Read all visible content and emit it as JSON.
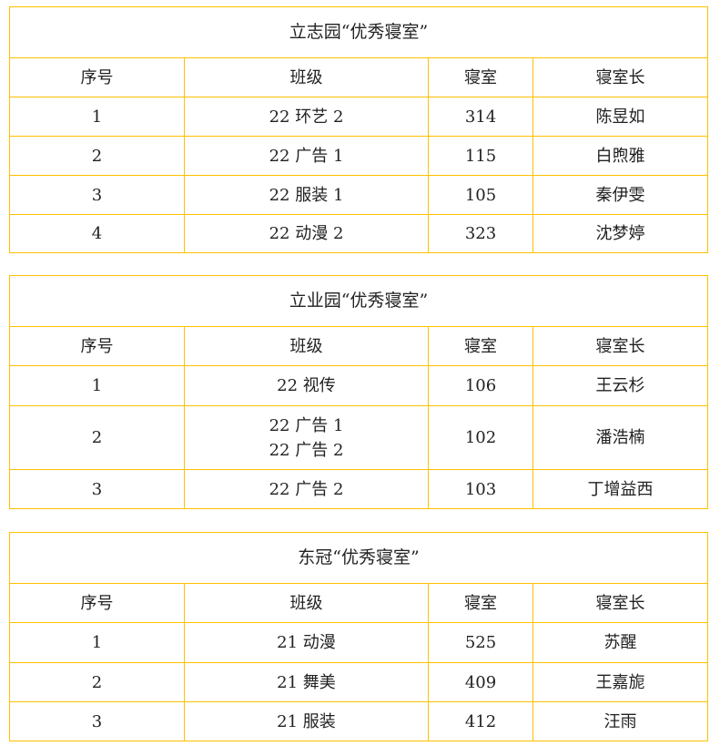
{
  "border_color": "#FFC000",
  "headers": [
    "序号",
    "班级",
    "寝室",
    "寝室长"
  ],
  "tables": [
    {
      "title": "立志园“优秀寝室”",
      "rows": [
        [
          "1",
          "22 环艺 2",
          "314",
          "陈昱如"
        ],
        [
          "2",
          "22 广告 1",
          "115",
          "白煦雅"
        ],
        [
          "3",
          "22 服装 1",
          "105",
          "秦伊雯"
        ],
        [
          "4",
          "22 动漫 2",
          "323",
          "沈梦婷"
        ]
      ]
    },
    {
      "title": "立业园“优秀寝室”",
      "rows": [
        [
          "1",
          "22 视传",
          "106",
          "王云杉"
        ],
        [
          "2",
          "22 广告 1\n22 广告 2",
          "102",
          "潘浩楠"
        ],
        [
          "3",
          "22 广告 2",
          "103",
          "丁增益西"
        ]
      ]
    },
    {
      "title": "东冠“优秀寝室”",
      "rows": [
        [
          "1",
          "21 动漫",
          "525",
          "苏醒"
        ],
        [
          "2",
          "21 舞美",
          "409",
          "王嘉旎"
        ],
        [
          "3",
          "21 服装",
          "412",
          "汪雨"
        ]
      ]
    }
  ]
}
